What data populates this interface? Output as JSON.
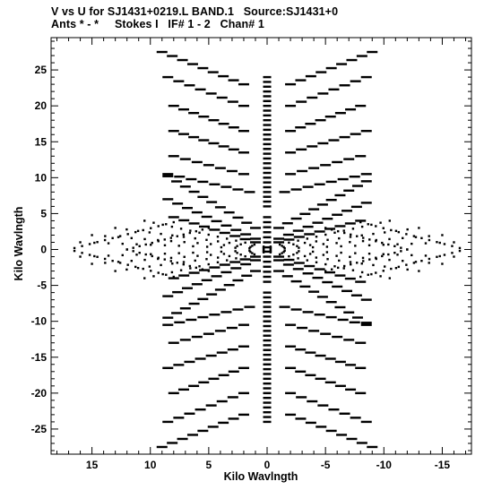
{
  "chart_data": {
    "type": "scatter",
    "title": "V vs U for SJ1431+0219.L BAND.1   Source:SJ1431+0",
    "subtitle": "Ants * - *     Stokes I   IF# 1 - 2   Chan# 1",
    "xlabel": "Kilo Wavlngth",
    "ylabel": "Kilo Wavlngth",
    "xlim": [
      18.5,
      -17.5
    ],
    "ylim": [
      -28.5,
      29.5
    ],
    "x_ticks": [
      15,
      10,
      5,
      0,
      -5,
      -10,
      -15
    ],
    "x_tick_labels": [
      "15",
      "10",
      "5",
      "0",
      "-5",
      "-10",
      "-15"
    ],
    "y_ticks": [
      25,
      20,
      15,
      10,
      5,
      0,
      -5,
      -10,
      -15,
      -20,
      -25
    ],
    "y_tick_labels": [
      "25",
      "20",
      "15",
      "10",
      "5",
      "0",
      "-5",
      "-10",
      "-15",
      "-20",
      "-25"
    ],
    "grid": false,
    "marker_color": "#000000",
    "series": [
      {
        "tracks": [
          {
            "u0": 0.0,
            "v0": 24.0,
            "u1": 0.0,
            "v1": 6.0,
            "n": 28
          },
          {
            "u0": 0.0,
            "v0": 4.5,
            "u1": 0.0,
            "v1": 0.3,
            "n": 7
          },
          {
            "u0": 0.0,
            "v0": -24.0,
            "u1": 0.0,
            "v1": -6.0,
            "n": 28
          },
          {
            "u0": 0.0,
            "v0": -4.5,
            "u1": 0.0,
            "v1": -0.3,
            "n": 7
          },
          {
            "u0": 2.0,
            "v0": 23.0,
            "u1": 9.0,
            "v1": 27.5,
            "n": 9
          },
          {
            "u0": -2.0,
            "v0": 23.0,
            "u1": -9.0,
            "v1": 27.5,
            "n": 9
          },
          {
            "u0": 2.0,
            "v0": 20.0,
            "u1": 8.5,
            "v1": 24.0,
            "n": 8
          },
          {
            "u0": -2.0,
            "v0": 20.0,
            "u1": -8.5,
            "v1": 24.0,
            "n": 8
          },
          {
            "u0": 2.0,
            "v0": 16.5,
            "u1": 8.0,
            "v1": 20.0,
            "n": 8
          },
          {
            "u0": -2.0,
            "v0": 16.5,
            "u1": -8.0,
            "v1": 20.0,
            "n": 8
          },
          {
            "u0": 2.0,
            "v0": 13.5,
            "u1": 8.0,
            "v1": 16.5,
            "n": 8
          },
          {
            "u0": -2.0,
            "v0": 13.5,
            "u1": -8.5,
            "v1": 16.5,
            "n": 8
          },
          {
            "u0": 2.0,
            "v0": 10.5,
            "u1": 8.0,
            "v1": 13.0,
            "n": 7
          },
          {
            "u0": -2.0,
            "v0": 10.5,
            "u1": -8.0,
            "v1": 13.0,
            "n": 7
          },
          {
            "u0": 1.5,
            "v0": 8.0,
            "u1": 8.5,
            "v1": 10.5,
            "n": 8
          },
          {
            "u0": -1.5,
            "v0": 8.0,
            "u1": -8.5,
            "v1": 10.5,
            "n": 8
          },
          {
            "u0": 1.0,
            "v0": 3.0,
            "u1": 8.5,
            "v1": 10.2,
            "n": 11
          },
          {
            "u0": -1.0,
            "v0": 3.0,
            "u1": -8.5,
            "v1": 9.5,
            "n": 11
          },
          {
            "u0": 1.0,
            "v0": 1.5,
            "u1": 8.5,
            "v1": 7.0,
            "n": 10
          },
          {
            "u0": -1.0,
            "v0": 1.5,
            "u1": -8.5,
            "v1": 6.5,
            "n": 10
          },
          {
            "u0": 1.0,
            "v0": 1.0,
            "u1": 8.0,
            "v1": 4.5,
            "n": 9
          },
          {
            "u0": -1.0,
            "v0": 1.0,
            "u1": -8.0,
            "v1": 4.0,
            "n": 9
          },
          {
            "u0": -2.0,
            "v0": -23.0,
            "u1": -9.0,
            "v1": -27.5,
            "n": 9
          },
          {
            "u0": 2.0,
            "v0": -23.0,
            "u1": 9.0,
            "v1": -27.5,
            "n": 9
          },
          {
            "u0": -2.0,
            "v0": -20.0,
            "u1": -8.5,
            "v1": -24.0,
            "n": 8
          },
          {
            "u0": 2.0,
            "v0": -20.0,
            "u1": 8.5,
            "v1": -24.0,
            "n": 8
          },
          {
            "u0": -2.0,
            "v0": -16.5,
            "u1": -8.0,
            "v1": -20.0,
            "n": 8
          },
          {
            "u0": 2.0,
            "v0": -16.5,
            "u1": 8.0,
            "v1": -20.0,
            "n": 8
          },
          {
            "u0": -2.0,
            "v0": -13.5,
            "u1": -8.0,
            "v1": -16.5,
            "n": 8
          },
          {
            "u0": 2.0,
            "v0": -13.5,
            "u1": 8.5,
            "v1": -16.5,
            "n": 8
          },
          {
            "u0": -2.0,
            "v0": -10.5,
            "u1": -8.0,
            "v1": -13.0,
            "n": 7
          },
          {
            "u0": 2.0,
            "v0": -10.5,
            "u1": 8.0,
            "v1": -13.0,
            "n": 7
          },
          {
            "u0": -1.5,
            "v0": -8.0,
            "u1": -8.5,
            "v1": -10.5,
            "n": 8
          },
          {
            "u0": 1.5,
            "v0": -8.0,
            "u1": 8.5,
            "v1": -10.5,
            "n": 8
          },
          {
            "u0": -1.0,
            "v0": -3.0,
            "u1": -8.5,
            "v1": -10.2,
            "n": 11
          },
          {
            "u0": 1.0,
            "v0": -3.0,
            "u1": 8.5,
            "v1": -9.5,
            "n": 11
          },
          {
            "u0": -1.0,
            "v0": -1.5,
            "u1": -8.5,
            "v1": -7.0,
            "n": 10
          },
          {
            "u0": 1.0,
            "v0": -1.5,
            "u1": 8.5,
            "v1": -6.5,
            "n": 10
          },
          {
            "u0": -1.0,
            "v0": -1.0,
            "u1": -8.0,
            "v1": -4.5,
            "n": 9
          },
          {
            "u0": 1.0,
            "v0": -1.0,
            "u1": 8.0,
            "v1": -4.0,
            "n": 9
          }
        ],
        "diamond_dots": {
          "left_tip": 16.5,
          "right_tip": -16.5,
          "half_height_at_u8": 4.5,
          "lines": [
            [
              0.3,
              0.1,
              16.0,
              1.0
            ],
            [
              0.3,
              0.2,
              15.0,
              2.0
            ],
            [
              0.3,
              0.3,
              13.0,
              3.0
            ],
            [
              0.3,
              0.4,
              10.5,
              4.0
            ],
            [
              0.3,
              -0.1,
              16.0,
              -1.0
            ],
            [
              0.3,
              -0.2,
              15.0,
              -2.0
            ],
            [
              0.3,
              -0.3,
              13.0,
              -3.0
            ],
            [
              0.3,
              -0.4,
              10.5,
              -4.0
            ],
            [
              -0.3,
              -0.1,
              -16.0,
              -1.0
            ],
            [
              -0.3,
              -0.2,
              -15.0,
              -2.0
            ],
            [
              -0.3,
              -0.3,
              -13.0,
              -3.0
            ],
            [
              -0.3,
              -0.4,
              -10.5,
              -4.0
            ],
            [
              -0.3,
              0.1,
              -16.0,
              1.0
            ],
            [
              -0.3,
              0.2,
              -15.0,
              2.0
            ],
            [
              -0.3,
              0.3,
              -13.0,
              3.0
            ],
            [
              -0.3,
              0.4,
              -10.5,
              4.0
            ],
            [
              8.0,
              3.8,
              16.5,
              0.2
            ],
            [
              8.0,
              -3.8,
              16.5,
              -0.2
            ],
            [
              -8.0,
              -3.8,
              -16.5,
              -0.2
            ],
            [
              -8.0,
              3.8,
              -16.5,
              0.2
            ],
            [
              5.0,
              3.0,
              12.0,
              0.0
            ],
            [
              5.0,
              -3.0,
              12.0,
              0.0
            ],
            [
              -5.0,
              -3.0,
              -12.0,
              0.0
            ],
            [
              -5.0,
              3.0,
              -12.0,
              0.0
            ]
          ],
          "points_per_line": 14
        }
      }
    ]
  }
}
